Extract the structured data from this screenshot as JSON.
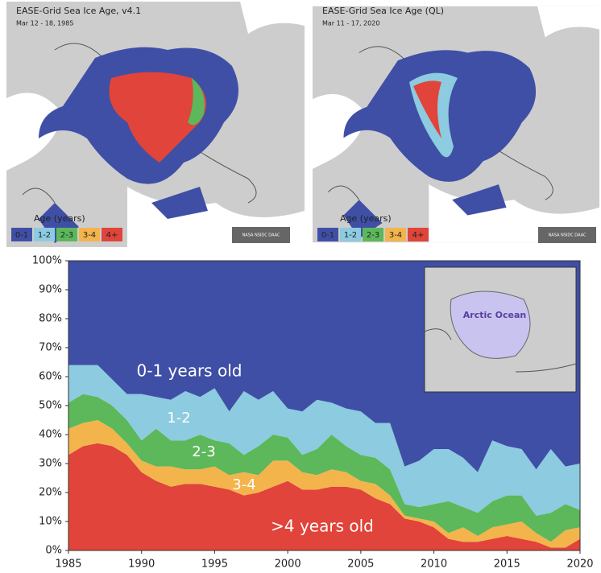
{
  "maps": [
    {
      "title": "EASE-Grid Sea Ice Age, v4.1",
      "date": "Mar 12 - 18, 1985",
      "legend_title": "Age (years)",
      "legend": [
        "0-1",
        "1-2",
        "2-3",
        "3-4",
        "4+"
      ],
      "credit": "NASA NSIDC DAAC"
    },
    {
      "title": "EASE-Grid Sea Ice Age (QL)",
      "date": "Mar 11 - 17, 2020",
      "legend_title": "Age (years)",
      "legend": [
        "0-1",
        "1-2",
        "2-3",
        "3-4",
        "4+"
      ],
      "credit": "NASA NSIDC DAAC"
    }
  ],
  "inset": {
    "label": "Arctic Ocean"
  },
  "chart_data": {
    "type": "stacked_area",
    "x": [
      1985,
      1986,
      1987,
      1988,
      1989,
      1990,
      1991,
      1992,
      1993,
      1994,
      1995,
      1996,
      1997,
      1998,
      1999,
      2000,
      2001,
      2002,
      2003,
      2004,
      2005,
      2006,
      2007,
      2008,
      2009,
      2010,
      2011,
      2012,
      2013,
      2014,
      2015,
      2016,
      2017,
      2018,
      2019,
      2020
    ],
    "series": [
      {
        "name": ">4 years old",
        "color": "#e0443a",
        "values": [
          33,
          36,
          37,
          36,
          33,
          27,
          24,
          22,
          23,
          23,
          22,
          21,
          19,
          20,
          22,
          24,
          21,
          21,
          22,
          22,
          21,
          18,
          16,
          11,
          10,
          8,
          4,
          3,
          3,
          4,
          5,
          4,
          3,
          1,
          1,
          4
        ]
      },
      {
        "name": "3-4",
        "color": "#f4b44c",
        "values": [
          9,
          8,
          8,
          6,
          4,
          4,
          5,
          7,
          5,
          5,
          7,
          5,
          8,
          6,
          9,
          7,
          6,
          5,
          6,
          5,
          3,
          5,
          3,
          1,
          1,
          2,
          2,
          5,
          2,
          4,
          4,
          6,
          3,
          2,
          6,
          4
        ]
      },
      {
        "name": "2-3",
        "color": "#5cb85a",
        "values": [
          9,
          10,
          8,
          8,
          8,
          7,
          13,
          9,
          10,
          12,
          9,
          11,
          6,
          10,
          9,
          8,
          6,
          9,
          12,
          9,
          9,
          9,
          9,
          4,
          4,
          6,
          11,
          7,
          8,
          9,
          10,
          9,
          6,
          10,
          9,
          6
        ]
      },
      {
        "name": "1-2",
        "color": "#8ccbe0",
        "values": [
          13,
          10,
          11,
          9,
          9,
          16,
          11,
          14,
          17,
          13,
          18,
          11,
          22,
          16,
          15,
          10,
          15,
          17,
          11,
          13,
          15,
          12,
          16,
          13,
          16,
          19,
          18,
          17,
          14,
          21,
          17,
          16,
          16,
          22,
          13,
          16
        ]
      },
      {
        "name": "0-1 years old",
        "color": "#3f4fa6",
        "values": [
          36,
          36,
          36,
          41,
          46,
          46,
          47,
          48,
          45,
          47,
          44,
          52,
          45,
          48,
          45,
          51,
          52,
          48,
          49,
          51,
          52,
          56,
          56,
          71,
          69,
          65,
          65,
          68,
          73,
          62,
          64,
          65,
          72,
          65,
          71,
          70
        ]
      }
    ],
    "xlim": [
      1985,
      2020
    ],
    "xticks": [
      1985,
      1990,
      1995,
      2000,
      2005,
      2010,
      2015,
      2020
    ],
    "ylim": [
      0,
      100
    ],
    "yticks": [
      {
        "value": 0,
        "label": "0%"
      },
      {
        "value": 10,
        "label": "10%"
      },
      {
        "value": 20,
        "label": "20%"
      },
      {
        "value": 30,
        "label": "30%"
      },
      {
        "value": 40,
        "label": "40%"
      },
      {
        "value": 50,
        "label": "50%"
      },
      {
        "value": 60,
        "label": "60%"
      },
      {
        "value": 70,
        "label": "70%"
      },
      {
        "value": 80,
        "label": "80%"
      },
      {
        "value": 90,
        "label": "90%"
      },
      {
        "value": 100,
        "label": "100%"
      }
    ]
  }
}
